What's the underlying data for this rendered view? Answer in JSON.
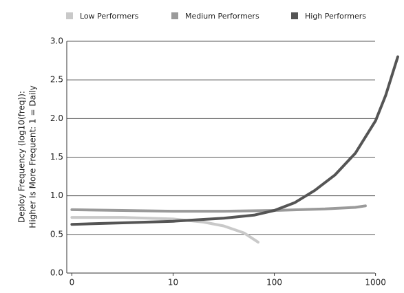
{
  "chart_data": {
    "type": "line",
    "y_label": [
      "Deploy Frequency (log10(freq)):",
      "Higher Is More Frequent: 1 = Daily"
    ],
    "series": [
      {
        "name": "Low Performers",
        "color": "#c9c9c9",
        "x": [
          0,
          0.5,
          1,
          1.3,
          1.5,
          1.7,
          1.84
        ],
        "values": [
          0.72,
          0.72,
          0.7,
          0.66,
          0.61,
          0.52,
          0.4
        ]
      },
      {
        "name": "Medium Performers",
        "color": "#9a9a9a",
        "x": [
          0,
          0.5,
          1,
          1.5,
          2,
          2.5,
          2.8,
          2.9
        ],
        "values": [
          0.82,
          0.81,
          0.8,
          0.8,
          0.81,
          0.83,
          0.85,
          0.87
        ]
      },
      {
        "name": "High Performers",
        "color": "#555555",
        "x": [
          0,
          0.5,
          1,
          1.5,
          1.8,
          2,
          2.2,
          2.4,
          2.6,
          2.8,
          3.0,
          3.1,
          3.22
        ],
        "values": [
          0.63,
          0.65,
          0.67,
          0.71,
          0.75,
          0.81,
          0.91,
          1.07,
          1.27,
          1.55,
          1.97,
          2.3,
          2.8
        ]
      }
    ],
    "xlim": [
      -0.03,
      3.22
    ],
    "xticks": [
      0,
      {
        "value": 1,
        "label": "10"
      },
      {
        "value": 2,
        "label": "100"
      },
      {
        "value": 3,
        "label": "1000"
      }
    ],
    "ylim": [
      0,
      3
    ],
    "yticks": [
      {
        "value": 0,
        "label": "0.0"
      },
      0.5,
      {
        "value": 1,
        "label": "1.0"
      },
      1.5,
      {
        "value": 2,
        "label": "2.0"
      },
      2.5,
      {
        "value": 3,
        "label": "3.0"
      }
    ],
    "grid": true,
    "legend": "top"
  }
}
